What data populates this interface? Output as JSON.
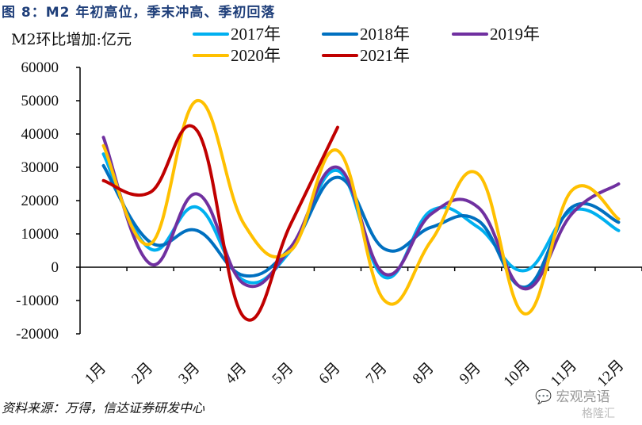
{
  "header": {
    "title": "图 8：M2 年初高位，季末冲高、季初回落",
    "unit_label": "M2环比增加:亿元"
  },
  "footer": {
    "source": "资料来源：万得，信达证券研发中心",
    "watermark": "宏观亮语",
    "watermark2": "格隆汇"
  },
  "chart_data": {
    "type": "line",
    "title": "图 8：M2 年初高位，季末冲高、季初回落",
    "ylabel": "M2环比增加:亿元",
    "xlabel": "",
    "categories": [
      "1月",
      "2月",
      "3月",
      "4月",
      "5月",
      "6月",
      "7月",
      "8月",
      "9月",
      "10月",
      "11月",
      "12月"
    ],
    "ylim": [
      -20000,
      60000
    ],
    "yticks": [
      60000,
      50000,
      40000,
      30000,
      20000,
      10000,
      0,
      -10000,
      -20000
    ],
    "grid": false,
    "legend_position": "top",
    "smooth": true,
    "series": [
      {
        "name": "2017年",
        "color": "#00b0f0",
        "values": [
          34000,
          5500,
          18000,
          -4000,
          5000,
          29000,
          -3000,
          17000,
          12000,
          -1000,
          17000,
          11000
        ]
      },
      {
        "name": "2018年",
        "color": "#0070c0",
        "values": [
          30500,
          7500,
          11000,
          -2500,
          6000,
          27000,
          5500,
          12000,
          14000,
          -6000,
          18000,
          13500
        ]
      },
      {
        "name": "2019年",
        "color": "#7030a0",
        "values": [
          39000,
          1000,
          22000,
          -5000,
          6000,
          30000,
          -2000,
          16000,
          18000,
          -6500,
          16000,
          25000
        ]
      },
      {
        "name": "2020年",
        "color": "#ffc000",
        "values": [
          36500,
          7000,
          50000,
          13000,
          5000,
          35000,
          -10000,
          8000,
          28000,
          -14000,
          23000,
          14500
        ]
      },
      {
        "name": "2021年",
        "color": "#c00000",
        "values": [
          26000,
          22500,
          41000,
          -15000,
          13000,
          42000
        ]
      }
    ]
  }
}
